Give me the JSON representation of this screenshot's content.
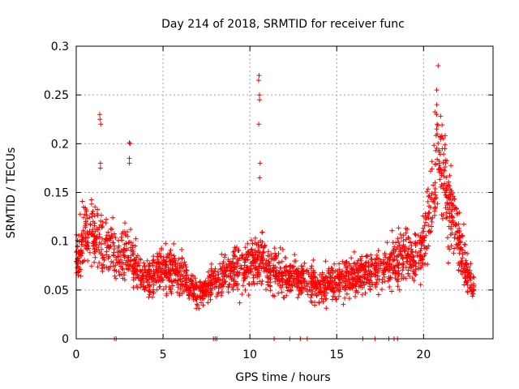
{
  "chart_data": {
    "type": "scatter",
    "title": "Day 214 of 2018, SRMTID for receiver func",
    "xlabel": "GPS time / hours",
    "ylabel": "SRMTID / TECUs",
    "xlim": [
      0,
      24
    ],
    "ylim": [
      0,
      0.3
    ],
    "x_ticks": [
      0,
      5,
      10,
      15,
      20
    ],
    "y_ticks": [
      0,
      0.05,
      0.1,
      0.15,
      0.2,
      0.25,
      0.3
    ],
    "x_tick_labels": [
      "0",
      "5",
      "10",
      "15",
      "20"
    ],
    "y_tick_labels": [
      "0",
      "0.05",
      "0.1",
      "0.15",
      "0.2",
      "0.25",
      "0.3"
    ],
    "grid": true,
    "marker": "+",
    "color": "#ff0000",
    "profile": {
      "description": "approximate typical SRMTID level vs hour (envelope read from the cloud of points)",
      "x": [
        0,
        0.5,
        1,
        1.5,
        2,
        2.5,
        3,
        3.5,
        4,
        5,
        6,
        7,
        8,
        9,
        10,
        10.7,
        11,
        12,
        13,
        14,
        15,
        16,
        17,
        18,
        18.5,
        19,
        19.5,
        20,
        20.5,
        21,
        21.5,
        22,
        22.5,
        22.9
      ],
      "y": [
        0.08,
        0.11,
        0.105,
        0.1,
        0.09,
        0.085,
        0.095,
        0.07,
        0.06,
        0.075,
        0.065,
        0.045,
        0.06,
        0.07,
        0.075,
        0.085,
        0.07,
        0.065,
        0.06,
        0.055,
        0.06,
        0.065,
        0.07,
        0.075,
        0.08,
        0.085,
        0.08,
        0.1,
        0.15,
        0.18,
        0.14,
        0.1,
        0.07,
        0.05
      ]
    },
    "spikes": [
      {
        "x": 1.4,
        "y": [
          0.22,
          0.23,
          0.225,
          0.18,
          0.175
        ]
      },
      {
        "x": 3.1,
        "y": [
          0.2,
          0.201,
          0.185,
          0.18
        ]
      },
      {
        "x": 10.55,
        "y": [
          0.27,
          0.265,
          0.25,
          0.245,
          0.22,
          0.18,
          0.165
        ]
      },
      {
        "x": 20.8,
        "y": [
          0.28,
          0.255,
          0.24,
          0.23,
          0.22,
          0.21
        ]
      }
    ],
    "zero_points_x": [
      2.2,
      2.3,
      7.9,
      8.0,
      8.1,
      11.4,
      12.3,
      12.9,
      13.3,
      16.5,
      17.2,
      18.0,
      18.3,
      18.5
    ]
  }
}
